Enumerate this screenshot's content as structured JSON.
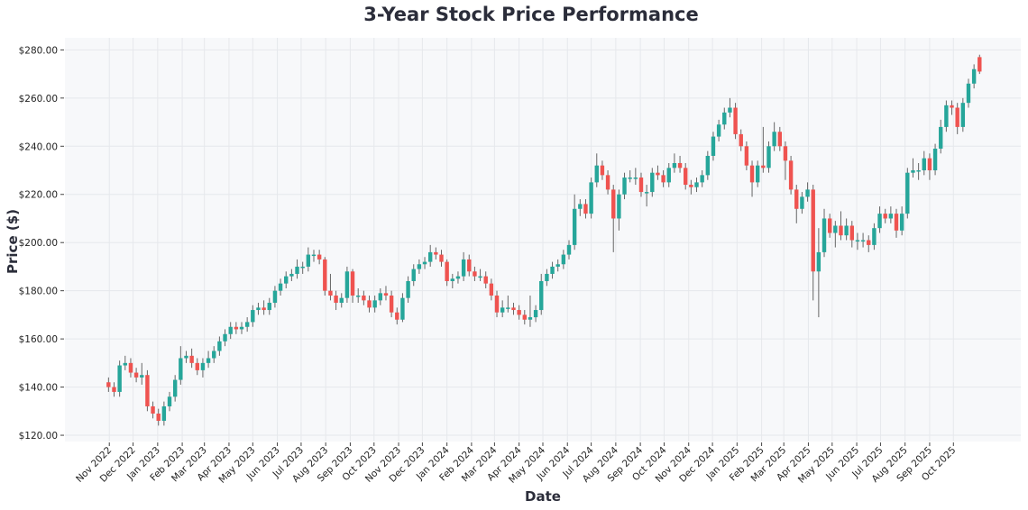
{
  "chart_data": {
    "type": "candlestick",
    "title": "3-Year Stock Price Performance",
    "xlabel": "Date",
    "ylabel": "Price ($)",
    "ylim": [
      117.4,
      285
    ],
    "xlim": [
      "2022-09-06",
      "2025-12-25"
    ],
    "grid": true,
    "colors": {
      "up": "#26a69a",
      "down": "#ef5350",
      "background": "#f7f8fa",
      "grid": "#e6e8ec"
    },
    "y_ticks": [
      "$120.00",
      "$140.00",
      "$160.00",
      "$180.00",
      "$200.00",
      "$220.00",
      "$240.00",
      "$260.00",
      "$280.00"
    ],
    "y_tick_values": [
      120,
      140,
      160,
      180,
      200,
      220,
      240,
      260,
      280
    ],
    "x_ticks": [
      "Nov 2022",
      "Dec 2022",
      "Jan 2023",
      "Feb 2023",
      "Mar 2023",
      "Apr 2023",
      "May 2023",
      "Jun 2023",
      "Jul 2023",
      "Aug 2023",
      "Sep 2023",
      "Oct 2023",
      "Nov 2023",
      "Dec 2023",
      "Jan 2024",
      "Feb 2024",
      "Mar 2024",
      "Apr 2024",
      "May 2024",
      "Jun 2024",
      "Jul 2024",
      "Aug 2024",
      "Sep 2024",
      "Oct 2024",
      "Nov 2024",
      "Dec 2024",
      "Jan 2025",
      "Feb 2025",
      "Mar 2025",
      "Apr 2025",
      "May 2025",
      "Jun 2025",
      "Jul 2025",
      "Aug 2025",
      "Sep 2025",
      "Oct 2025"
    ],
    "x_tick_dates": [
      "2022-11-01",
      "2022-12-01",
      "2023-01-01",
      "2023-02-01",
      "2023-03-01",
      "2023-04-01",
      "2023-05-01",
      "2023-06-01",
      "2023-07-01",
      "2023-08-01",
      "2023-09-01",
      "2023-10-01",
      "2023-11-01",
      "2023-12-01",
      "2024-01-01",
      "2024-02-01",
      "2024-03-01",
      "2024-04-01",
      "2024-05-01",
      "2024-06-01",
      "2024-07-01",
      "2024-08-01",
      "2024-09-01",
      "2024-10-01",
      "2024-11-01",
      "2024-12-01",
      "2025-01-01",
      "2025-02-01",
      "2025-03-01",
      "2025-04-01",
      "2025-05-01",
      "2025-06-01",
      "2025-07-01",
      "2025-08-01",
      "2025-09-01",
      "2025-10-01"
    ],
    "columns": [
      "date",
      "open",
      "high",
      "low",
      "close"
    ],
    "ohlc": [
      [
        "2022-10-31",
        142,
        144,
        138,
        140
      ],
      [
        "2022-11-07",
        140,
        142,
        136,
        138
      ],
      [
        "2022-11-14",
        138,
        151,
        136,
        149
      ],
      [
        "2022-11-21",
        149,
        153,
        147,
        150
      ],
      [
        "2022-11-28",
        150,
        152,
        144,
        146
      ],
      [
        "2022-12-05",
        146,
        148,
        142,
        144
      ],
      [
        "2022-12-12",
        144,
        150,
        141,
        145
      ],
      [
        "2022-12-19",
        145,
        147,
        130,
        132
      ],
      [
        "2022-12-26",
        132,
        134,
        127,
        129
      ],
      [
        "2023-01-02",
        129,
        131,
        124,
        126
      ],
      [
        "2023-01-09",
        126,
        134,
        124,
        132
      ],
      [
        "2023-01-16",
        132,
        138,
        130,
        136
      ],
      [
        "2023-01-23",
        136,
        145,
        134,
        143
      ],
      [
        "2023-01-30",
        143,
        157,
        141,
        152
      ],
      [
        "2023-02-06",
        152,
        155,
        150,
        153
      ],
      [
        "2023-02-13",
        153,
        156,
        148,
        150
      ],
      [
        "2023-02-20",
        150,
        152,
        145,
        147
      ],
      [
        "2023-02-27",
        147,
        152,
        144,
        150
      ],
      [
        "2023-03-06",
        150,
        155,
        148,
        152
      ],
      [
        "2023-03-13",
        152,
        157,
        150,
        155
      ],
      [
        "2023-03-20",
        155,
        161,
        153,
        159
      ],
      [
        "2023-03-27",
        159,
        164,
        157,
        162
      ],
      [
        "2023-04-03",
        162,
        167,
        160,
        165
      ],
      [
        "2023-04-10",
        165,
        167,
        162,
        164
      ],
      [
        "2023-04-17",
        164,
        167,
        162,
        165
      ],
      [
        "2023-04-24",
        165,
        169,
        163,
        167
      ],
      [
        "2023-05-01",
        167,
        174,
        165,
        172
      ],
      [
        "2023-05-08",
        172,
        175,
        170,
        173
      ],
      [
        "2023-05-15",
        173,
        176,
        170,
        172
      ],
      [
        "2023-05-22",
        172,
        177,
        170,
        175
      ],
      [
        "2023-05-29",
        175,
        182,
        173,
        180
      ],
      [
        "2023-06-05",
        180,
        185,
        178,
        183
      ],
      [
        "2023-06-12",
        183,
        188,
        181,
        186
      ],
      [
        "2023-06-19",
        186,
        189,
        184,
        187
      ],
      [
        "2023-06-26",
        187,
        193,
        185,
        190
      ],
      [
        "2023-07-03",
        190,
        192,
        187,
        190
      ],
      [
        "2023-07-10",
        190,
        198,
        188,
        195
      ],
      [
        "2023-07-17",
        195,
        197,
        192,
        195
      ],
      [
        "2023-07-24",
        195,
        197,
        191,
        193
      ],
      [
        "2023-07-31",
        193,
        194,
        178,
        180
      ],
      [
        "2023-08-07",
        180,
        187,
        176,
        178
      ],
      [
        "2023-08-14",
        178,
        180,
        172,
        175
      ],
      [
        "2023-08-21",
        175,
        179,
        173,
        177
      ],
      [
        "2023-08-28",
        177,
        190,
        175,
        188
      ],
      [
        "2023-09-04",
        188,
        189,
        175,
        178
      ],
      [
        "2023-09-11",
        178,
        181,
        175,
        178
      ],
      [
        "2023-09-18",
        178,
        180,
        174,
        176
      ],
      [
        "2023-09-25",
        176,
        178,
        171,
        173
      ],
      [
        "2023-10-02",
        173,
        178,
        171,
        176
      ],
      [
        "2023-10-09",
        176,
        181,
        174,
        179
      ],
      [
        "2023-10-16",
        179,
        182,
        176,
        178
      ],
      [
        "2023-10-23",
        178,
        180,
        169,
        171
      ],
      [
        "2023-10-30",
        171,
        173,
        166,
        168
      ],
      [
        "2023-11-06",
        168,
        179,
        167,
        177
      ],
      [
        "2023-11-13",
        177,
        186,
        175,
        184
      ],
      [
        "2023-11-20",
        184,
        191,
        182,
        189
      ],
      [
        "2023-11-27",
        189,
        193,
        187,
        191
      ],
      [
        "2023-12-04",
        191,
        194,
        189,
        192
      ],
      [
        "2023-12-11",
        192,
        199,
        190,
        196
      ],
      [
        "2023-12-18",
        196,
        198,
        193,
        195
      ],
      [
        "2023-12-25",
        195,
        197,
        190,
        192
      ],
      [
        "2024-01-01",
        192,
        193,
        182,
        184
      ],
      [
        "2024-01-08",
        184,
        187,
        181,
        185
      ],
      [
        "2024-01-15",
        185,
        188,
        183,
        186
      ],
      [
        "2024-01-22",
        186,
        196,
        184,
        193
      ],
      [
        "2024-01-29",
        193,
        195,
        186,
        188
      ],
      [
        "2024-02-05",
        188,
        190,
        184,
        186
      ],
      [
        "2024-02-12",
        186,
        189,
        184,
        186
      ],
      [
        "2024-02-19",
        186,
        188,
        181,
        183
      ],
      [
        "2024-02-26",
        183,
        185,
        176,
        178
      ],
      [
        "2024-03-04",
        178,
        180,
        169,
        171
      ],
      [
        "2024-03-11",
        171,
        176,
        169,
        173
      ],
      [
        "2024-03-18",
        173,
        178,
        171,
        173
      ],
      [
        "2024-03-25",
        173,
        175,
        170,
        172
      ],
      [
        "2024-04-01",
        172,
        174,
        168,
        170
      ],
      [
        "2024-04-08",
        170,
        172,
        166,
        168
      ],
      [
        "2024-04-15",
        168,
        178,
        165,
        169
      ],
      [
        "2024-04-22",
        169,
        174,
        167,
        172
      ],
      [
        "2024-04-29",
        172,
        187,
        170,
        184
      ],
      [
        "2024-05-06",
        184,
        189,
        182,
        187
      ],
      [
        "2024-05-13",
        187,
        192,
        185,
        190
      ],
      [
        "2024-05-20",
        190,
        193,
        188,
        191
      ],
      [
        "2024-05-27",
        191,
        197,
        189,
        195
      ],
      [
        "2024-06-03",
        195,
        201,
        193,
        199
      ],
      [
        "2024-06-10",
        199,
        220,
        197,
        214
      ],
      [
        "2024-06-17",
        214,
        218,
        211,
        216
      ],
      [
        "2024-06-24",
        216,
        218,
        210,
        212
      ],
      [
        "2024-07-01",
        212,
        227,
        210,
        225
      ],
      [
        "2024-07-08",
        225,
        237,
        223,
        232
      ],
      [
        "2024-07-15",
        232,
        234,
        226,
        228
      ],
      [
        "2024-07-22",
        228,
        230,
        220,
        222
      ],
      [
        "2024-07-29",
        222,
        224,
        196,
        210
      ],
      [
        "2024-08-05",
        210,
        222,
        205,
        220
      ],
      [
        "2024-08-12",
        220,
        229,
        218,
        227
      ],
      [
        "2024-08-19",
        227,
        230,
        225,
        227
      ],
      [
        "2024-08-26",
        227,
        231,
        224,
        227
      ],
      [
        "2024-09-02",
        227,
        229,
        219,
        221
      ],
      [
        "2024-09-09",
        221,
        224,
        215,
        221
      ],
      [
        "2024-09-16",
        221,
        231,
        219,
        229
      ],
      [
        "2024-09-23",
        229,
        232,
        226,
        228
      ],
      [
        "2024-09-30",
        228,
        230,
        223,
        225
      ],
      [
        "2024-10-07",
        225,
        233,
        223,
        231
      ],
      [
        "2024-10-14",
        231,
        237,
        229,
        233
      ],
      [
        "2024-10-21",
        233,
        236,
        229,
        231
      ],
      [
        "2024-10-28",
        231,
        233,
        222,
        224
      ],
      [
        "2024-11-04",
        224,
        226,
        220,
        223
      ],
      [
        "2024-11-11",
        223,
        227,
        221,
        225
      ],
      [
        "2024-11-18",
        225,
        230,
        223,
        228
      ],
      [
        "2024-11-25",
        228,
        238,
        226,
        236
      ],
      [
        "2024-12-02",
        236,
        246,
        234,
        244
      ],
      [
        "2024-12-09",
        244,
        251,
        242,
        249
      ],
      [
        "2024-12-16",
        249,
        256,
        247,
        254
      ],
      [
        "2024-12-23",
        254,
        260,
        252,
        256
      ],
      [
        "2024-12-30",
        256,
        258,
        243,
        245
      ],
      [
        "2025-01-06",
        245,
        247,
        238,
        240
      ],
      [
        "2025-01-13",
        240,
        242,
        230,
        232
      ],
      [
        "2025-01-20",
        232,
        234,
        219,
        225
      ],
      [
        "2025-01-27",
        225,
        234,
        223,
        232
      ],
      [
        "2025-02-03",
        232,
        248,
        229,
        231
      ],
      [
        "2025-02-10",
        231,
        242,
        229,
        240
      ],
      [
        "2025-02-17",
        240,
        250,
        238,
        246
      ],
      [
        "2025-02-24",
        246,
        248,
        238,
        240
      ],
      [
        "2025-03-03",
        240,
        242,
        226,
        234
      ],
      [
        "2025-03-10",
        234,
        236,
        220,
        222
      ],
      [
        "2025-03-17",
        222,
        224,
        208,
        214
      ],
      [
        "2025-03-24",
        214,
        221,
        212,
        219
      ],
      [
        "2025-03-31",
        219,
        225,
        217,
        222
      ],
      [
        "2025-04-07",
        222,
        224,
        176,
        188
      ],
      [
        "2025-04-14",
        188,
        206,
        169,
        196
      ],
      [
        "2025-04-21",
        196,
        214,
        194,
        210
      ],
      [
        "2025-04-28",
        210,
        212,
        202,
        204
      ],
      [
        "2025-05-05",
        204,
        209,
        198,
        207
      ],
      [
        "2025-05-12",
        207,
        213,
        201,
        203
      ],
      [
        "2025-05-19",
        203,
        210,
        201,
        207
      ],
      [
        "2025-05-26",
        207,
        209,
        198,
        201
      ],
      [
        "2025-06-02",
        201,
        204,
        197,
        201
      ],
      [
        "2025-06-09",
        201,
        204,
        198,
        201
      ],
      [
        "2025-06-16",
        201,
        203,
        196,
        199
      ],
      [
        "2025-06-23",
        199,
        208,
        197,
        206
      ],
      [
        "2025-06-30",
        206,
        215,
        204,
        212
      ],
      [
        "2025-07-07",
        212,
        214,
        208,
        210
      ],
      [
        "2025-07-14",
        210,
        215,
        208,
        212
      ],
      [
        "2025-07-21",
        212,
        214,
        202,
        205
      ],
      [
        "2025-07-28",
        205,
        215,
        203,
        212
      ],
      [
        "2025-08-04",
        212,
        231,
        210,
        229
      ],
      [
        "2025-08-11",
        229,
        235,
        227,
        230
      ],
      [
        "2025-08-18",
        230,
        233,
        226,
        230
      ],
      [
        "2025-08-25",
        230,
        238,
        228,
        235
      ],
      [
        "2025-09-01",
        235,
        237,
        226,
        230
      ],
      [
        "2025-09-08",
        230,
        241,
        228,
        239
      ],
      [
        "2025-09-15",
        239,
        251,
        237,
        248
      ],
      [
        "2025-09-22",
        248,
        259,
        246,
        257
      ],
      [
        "2025-09-29",
        257,
        259,
        253,
        256
      ],
      [
        "2025-10-06",
        256,
        258,
        245,
        248
      ],
      [
        "2025-10-13",
        248,
        260,
        246,
        258
      ],
      [
        "2025-10-20",
        258,
        268,
        256,
        266
      ],
      [
        "2025-10-27",
        266,
        274,
        264,
        272
      ],
      [
        "2025-11-03",
        277,
        278,
        270,
        271
      ]
    ]
  }
}
